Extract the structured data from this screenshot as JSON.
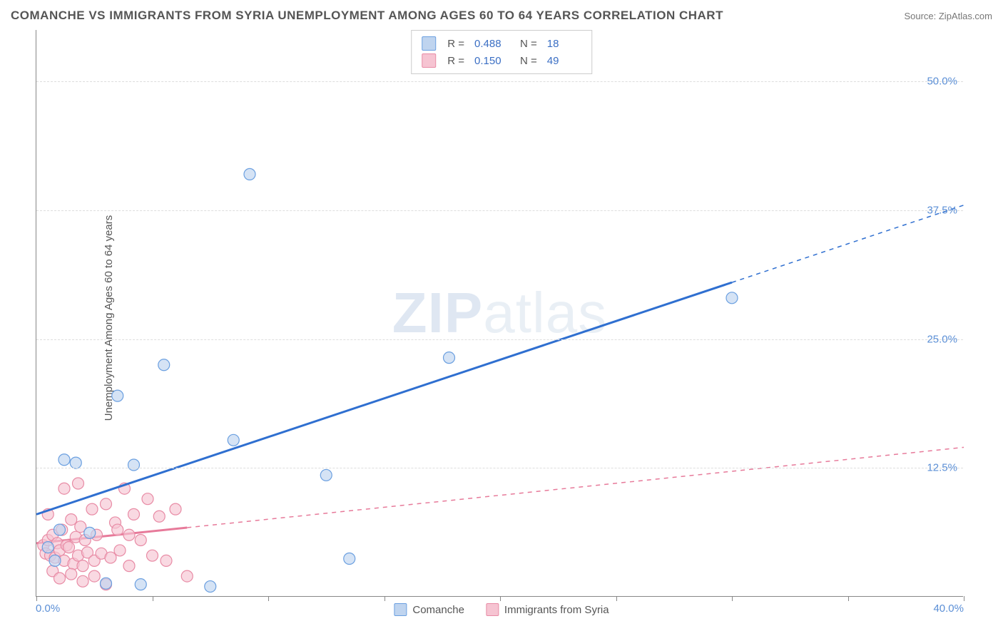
{
  "title": "COMANCHE VS IMMIGRANTS FROM SYRIA UNEMPLOYMENT AMONG AGES 60 TO 64 YEARS CORRELATION CHART",
  "source_prefix": "Source: ",
  "source_name": "ZipAtlas.com",
  "y_axis_label": "Unemployment Among Ages 60 to 64 years",
  "watermark_bold": "ZIP",
  "watermark_thin": "atlas",
  "chart": {
    "type": "scatter",
    "xlim": [
      0,
      40
    ],
    "ylim": [
      0,
      55
    ],
    "x_tick_positions": [
      0,
      5,
      10,
      15,
      20,
      25,
      30,
      35,
      40
    ],
    "y_gridlines": [
      12.5,
      25.0,
      37.5,
      50.0
    ],
    "y_tick_labels": [
      "12.5%",
      "25.0%",
      "37.5%",
      "50.0%"
    ],
    "x_start_label": "0.0%",
    "x_end_label": "40.0%",
    "background_color": "#ffffff",
    "grid_color": "#dddddd",
    "axis_color": "#888888",
    "label_color": "#5b8fd6",
    "marker_radius": 8,
    "marker_stroke_width": 1.2,
    "trend_line_width": 3,
    "trend_dash_width": 1.5
  },
  "series": [
    {
      "name": "Comanche",
      "fill_color": "#bfd4ef",
      "stroke_color": "#6a9fe0",
      "fill_opacity": 0.65,
      "points": [
        [
          9.2,
          41.0
        ],
        [
          30.0,
          29.0
        ],
        [
          1.2,
          13.3
        ],
        [
          1.7,
          13.0
        ],
        [
          4.2,
          12.8
        ],
        [
          5.5,
          22.5
        ],
        [
          3.5,
          19.5
        ],
        [
          12.5,
          11.8
        ],
        [
          17.8,
          23.2
        ],
        [
          8.5,
          15.2
        ],
        [
          13.5,
          3.7
        ],
        [
          7.5,
          1.0
        ],
        [
          4.5,
          1.2
        ],
        [
          3.0,
          1.3
        ],
        [
          0.8,
          3.5
        ],
        [
          1.0,
          6.5
        ],
        [
          0.5,
          4.8
        ],
        [
          2.3,
          6.2
        ]
      ],
      "trend": {
        "x1": 0,
        "y1": 8.0,
        "x2": 40,
        "y2": 38.0,
        "solid_until_x": 30,
        "color": "#2f6fd0"
      },
      "R": "0.488",
      "N": "18"
    },
    {
      "name": "Immigrants from Syria",
      "fill_color": "#f6c4d2",
      "stroke_color": "#e88ba5",
      "fill_opacity": 0.65,
      "points": [
        [
          0.3,
          5.0
        ],
        [
          0.4,
          4.2
        ],
        [
          0.5,
          5.5
        ],
        [
          0.6,
          4.0
        ],
        [
          0.7,
          6.0
        ],
        [
          0.8,
          3.8
        ],
        [
          0.9,
          5.2
        ],
        [
          1.0,
          4.5
        ],
        [
          1.1,
          6.5
        ],
        [
          1.2,
          3.5
        ],
        [
          1.3,
          5.0
        ],
        [
          1.4,
          4.8
        ],
        [
          1.5,
          7.5
        ],
        [
          1.6,
          3.2
        ],
        [
          1.7,
          5.8
        ],
        [
          1.8,
          4.0
        ],
        [
          1.9,
          6.8
        ],
        [
          2.0,
          3.0
        ],
        [
          2.1,
          5.5
        ],
        [
          2.2,
          4.3
        ],
        [
          2.4,
          8.5
        ],
        [
          2.5,
          3.5
        ],
        [
          2.6,
          6.0
        ],
        [
          2.8,
          4.2
        ],
        [
          3.0,
          9.0
        ],
        [
          3.2,
          3.8
        ],
        [
          3.4,
          7.2
        ],
        [
          3.6,
          4.5
        ],
        [
          3.8,
          10.5
        ],
        [
          4.0,
          3.0
        ],
        [
          4.2,
          8.0
        ],
        [
          4.5,
          5.5
        ],
        [
          4.8,
          9.5
        ],
        [
          5.0,
          4.0
        ],
        [
          5.3,
          7.8
        ],
        [
          5.6,
          3.5
        ],
        [
          6.0,
          8.5
        ],
        [
          6.5,
          2.0
        ],
        [
          0.7,
          2.5
        ],
        [
          1.0,
          1.8
        ],
        [
          1.5,
          2.2
        ],
        [
          2.0,
          1.5
        ],
        [
          2.5,
          2.0
        ],
        [
          3.0,
          1.2
        ],
        [
          1.2,
          10.5
        ],
        [
          1.8,
          11.0
        ],
        [
          0.5,
          8.0
        ],
        [
          3.5,
          6.5
        ],
        [
          4.0,
          6.0
        ]
      ],
      "trend": {
        "x1": 0,
        "y1": 5.2,
        "x2": 40,
        "y2": 14.5,
        "solid_until_x": 6.5,
        "color": "#e77a9a"
      },
      "R": "0.150",
      "N": "49"
    }
  ],
  "legend": {
    "R_label": "R =",
    "N_label": "N ="
  }
}
